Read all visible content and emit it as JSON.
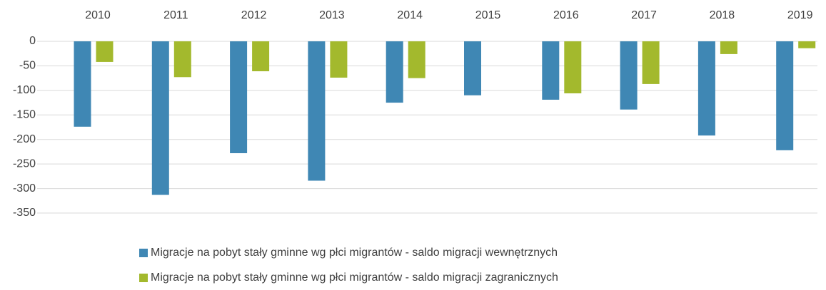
{
  "chart_data": {
    "type": "bar",
    "categories": [
      "2010",
      "2011",
      "2012",
      "2013",
      "2014",
      "2015",
      "2016",
      "2017",
      "2018",
      "2019"
    ],
    "series": [
      {
        "name": "Migracje na pobyt stały gminne wg płci migrantów - saldo migracji wewnętrznych",
        "color": "#3f87b4",
        "values": [
          -174,
          -313,
          -228,
          -284,
          -125,
          -110,
          -119,
          -139,
          -192,
          -222
        ]
      },
      {
        "name": "Migracje na pobyt stały gminne wg płci migrantów - saldo migracji zagranicznych",
        "color": "#a3b92d",
        "values": [
          -42,
          -73,
          -61,
          -74,
          -75,
          null,
          -106,
          -87,
          -26,
          -14
        ]
      }
    ],
    "ylim": [
      -350,
      0
    ],
    "yticks": [
      0,
      -50,
      -100,
      -150,
      -200,
      -250,
      -300,
      -350
    ],
    "grid": true
  }
}
